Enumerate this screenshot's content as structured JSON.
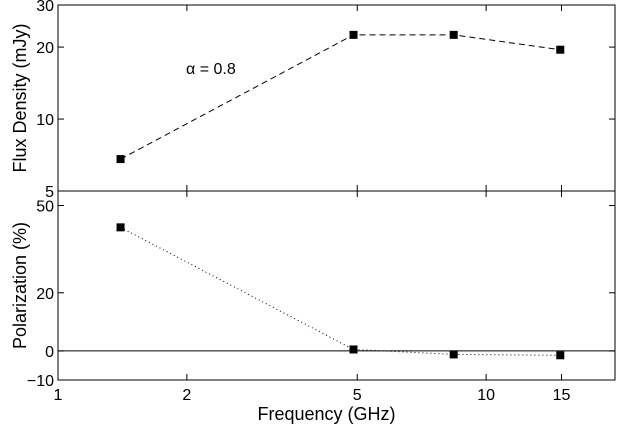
{
  "chart_data": [
    {
      "type": "line",
      "panel": "top",
      "ylabel": "Flux Density (mJy)",
      "xscale": "log",
      "yscale": "log",
      "xlim": [
        1,
        20
      ],
      "ylim": [
        5,
        30
      ],
      "yticks": [
        5,
        10,
        20,
        30
      ],
      "ytick_labels": [
        "5",
        "10",
        "20",
        "30"
      ],
      "line_style": "dashed",
      "series": [
        {
          "x": [
            1.4,
            4.9,
            8.4,
            14.9
          ],
          "y": [
            6.8,
            22.5,
            22.5,
            19.5
          ]
        }
      ],
      "annotation": "α = 0.8",
      "grid": false
    },
    {
      "type": "line",
      "panel": "bottom",
      "xlabel": "Frequency (GHz)",
      "ylabel": "Polarization (%)",
      "xscale": "log",
      "yscale": "linear",
      "xlim": [
        1,
        20
      ],
      "ylim": [
        -10,
        55
      ],
      "yticks": [
        -10,
        0,
        20,
        50
      ],
      "ytick_labels": [
        "−10",
        "0",
        "20",
        "50"
      ],
      "xticks": [
        1,
        2,
        5,
        10,
        15
      ],
      "xtick_labels": [
        "1",
        "2",
        "5",
        "10",
        "15"
      ],
      "reference_line_y": 0,
      "line_style": "dotted",
      "series": [
        {
          "x": [
            1.4,
            4.9,
            8.4,
            14.9
          ],
          "y": [
            42.5,
            0.5,
            -1.2,
            -1.5
          ]
        }
      ],
      "grid": false
    }
  ]
}
